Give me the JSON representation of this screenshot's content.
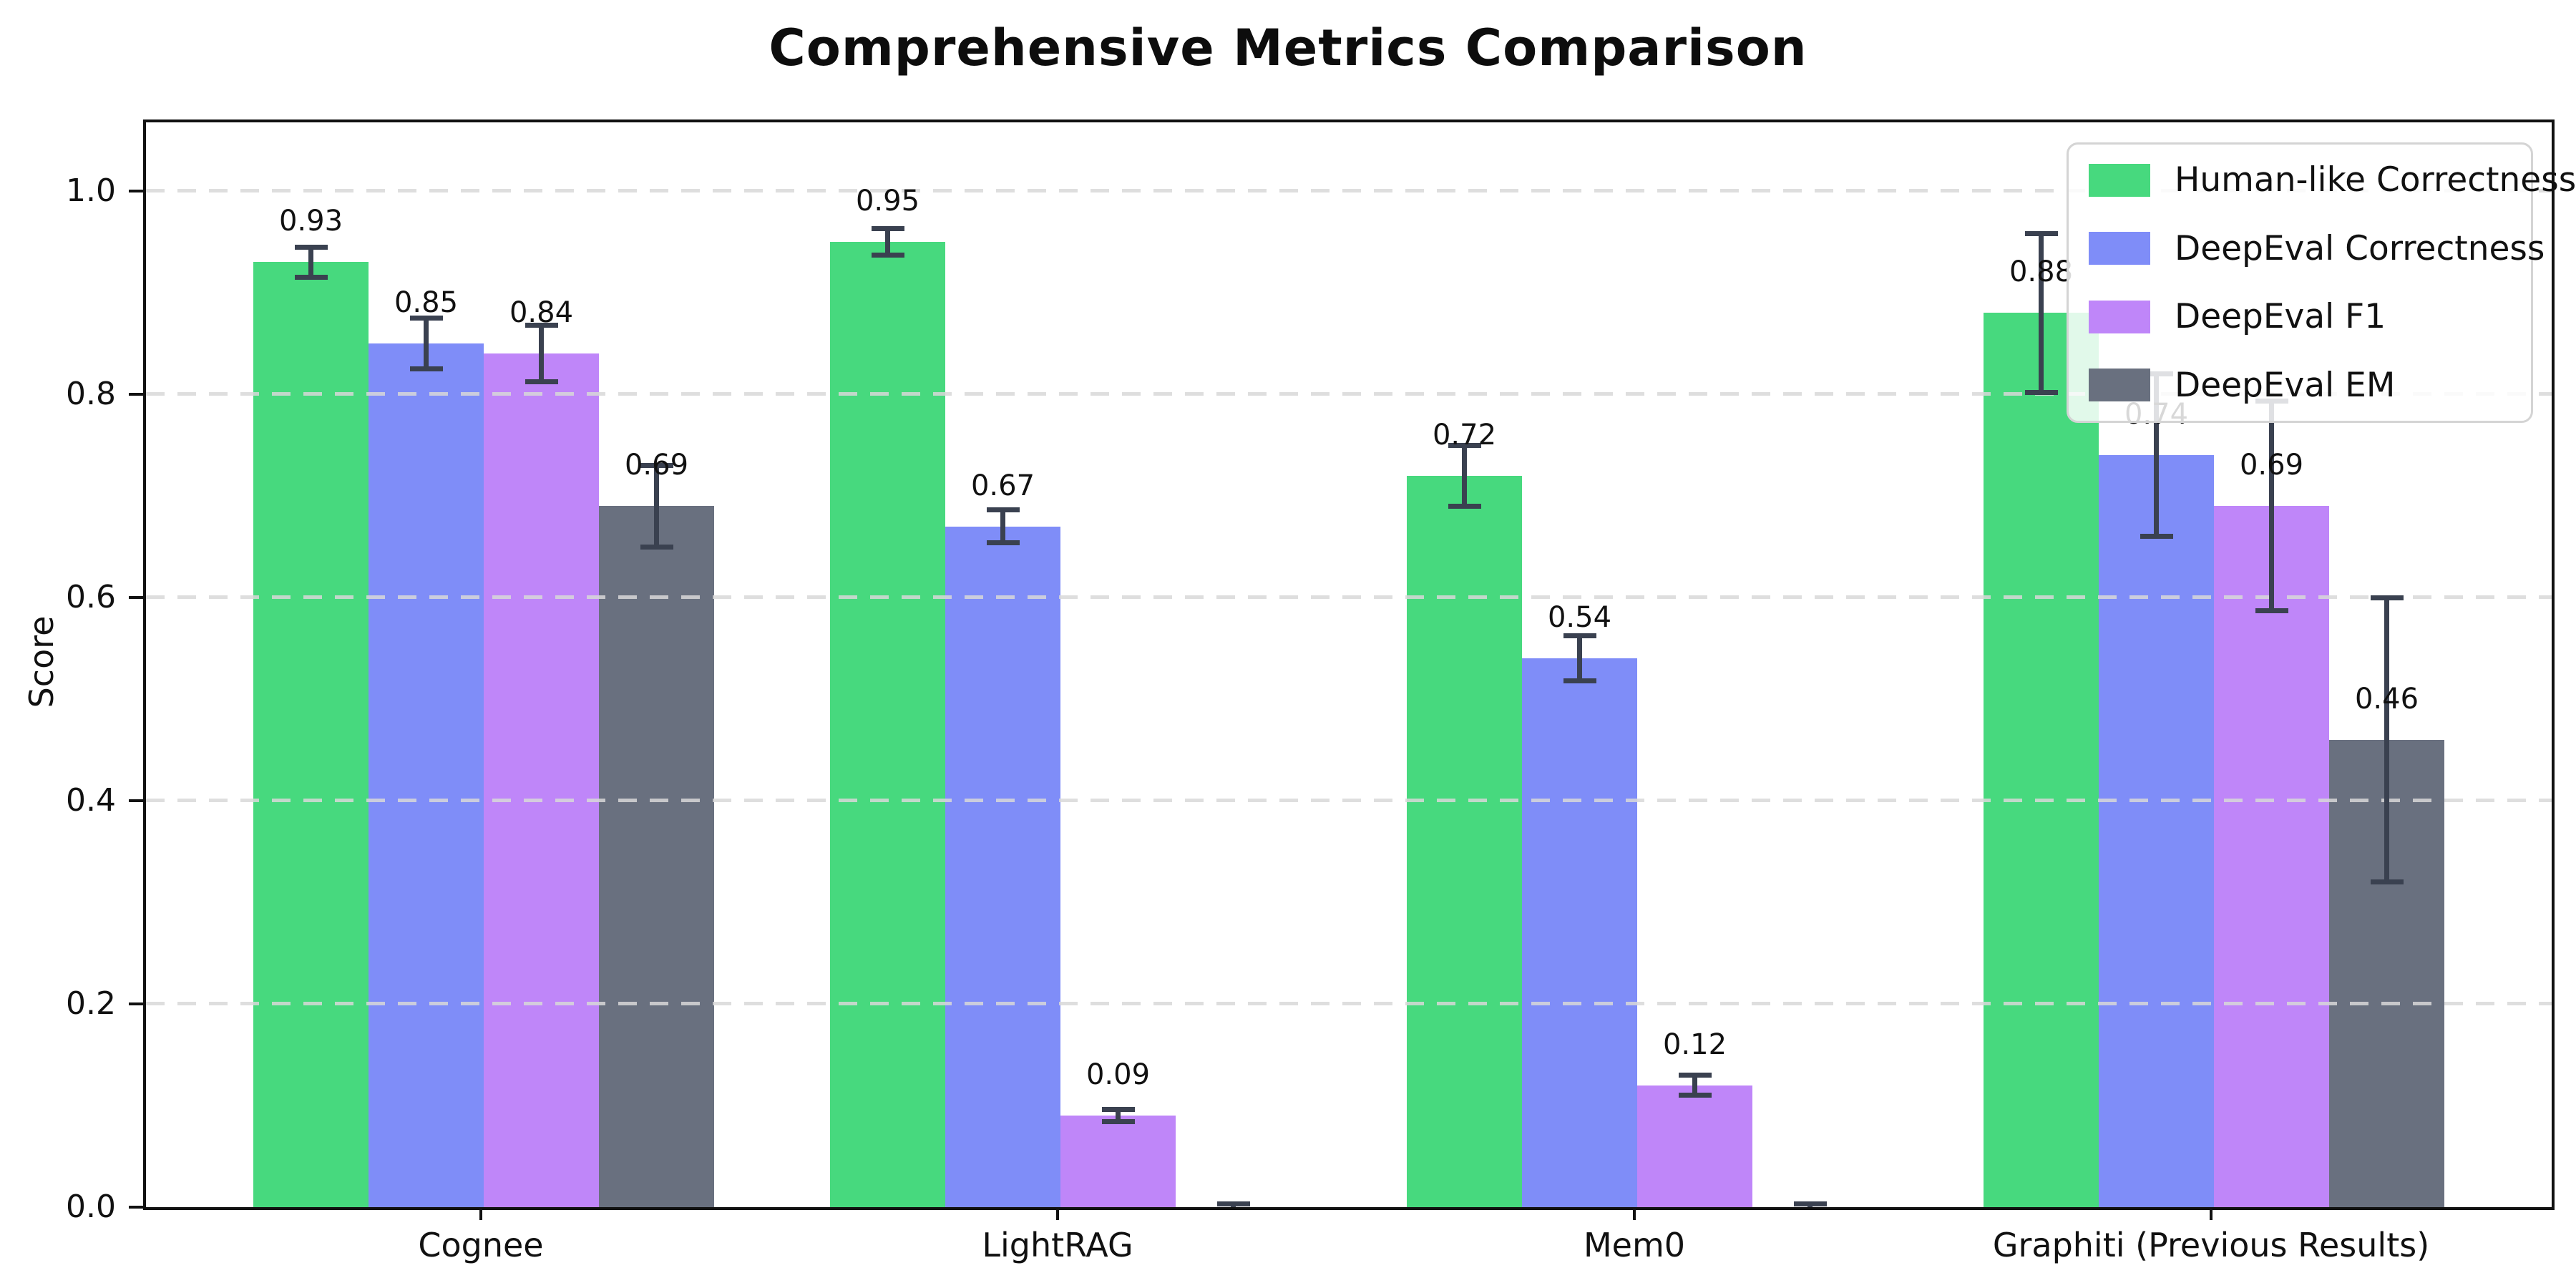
{
  "chart_data": {
    "type": "bar",
    "title": "Comprehensive Metrics Comparison",
    "ylabel": "Score",
    "xlabel": "",
    "categories": [
      "Cognee",
      "LightRAG",
      "Mem0",
      "Graphiti (Previous Results)"
    ],
    "series": [
      {
        "name": "Human-like Correctness",
        "color": "#47d97e",
        "values": [
          0.93,
          0.95,
          0.72,
          0.88
        ],
        "errors": [
          0.015,
          0.013,
          0.03,
          0.078
        ],
        "labels": [
          "0.93",
          "0.95",
          "0.72",
          "0.88"
        ]
      },
      {
        "name": "DeepEval Correctness",
        "color": "#7f8df8",
        "values": [
          0.85,
          0.67,
          0.54,
          0.74
        ],
        "errors": [
          0.025,
          0.016,
          0.022,
          0.08
        ],
        "labels": [
          "0.85",
          "0.67",
          "0.54",
          "0.74"
        ]
      },
      {
        "name": "DeepEval F1",
        "color": "#bf86f9",
        "values": [
          0.84,
          0.09,
          0.12,
          0.69
        ],
        "errors": [
          0.028,
          0.006,
          0.01,
          0.103
        ],
        "labels": [
          "0.84",
          "0.09",
          "0.12",
          "0.69"
        ]
      },
      {
        "name": "DeepEval EM",
        "color": "#69707f",
        "values": [
          0.69,
          0.0,
          0.0,
          0.46
        ],
        "errors": [
          0.04,
          0.003,
          0.003,
          0.14
        ],
        "labels": [
          "0.69",
          "",
          "",
          "0.46"
        ]
      }
    ],
    "yticks": [
      "0.0",
      "0.2",
      "0.4",
      "0.6",
      "0.8",
      "1.0"
    ],
    "ylim": [
      0,
      1.0676
    ],
    "grid": "horizontal-dashed",
    "legend_position": "upper-right",
    "colors": {
      "errorbar": "#3a4150",
      "grid": "#dcdcdc",
      "frame": "#111111",
      "background": "#ffffff",
      "text": "#111111"
    }
  }
}
